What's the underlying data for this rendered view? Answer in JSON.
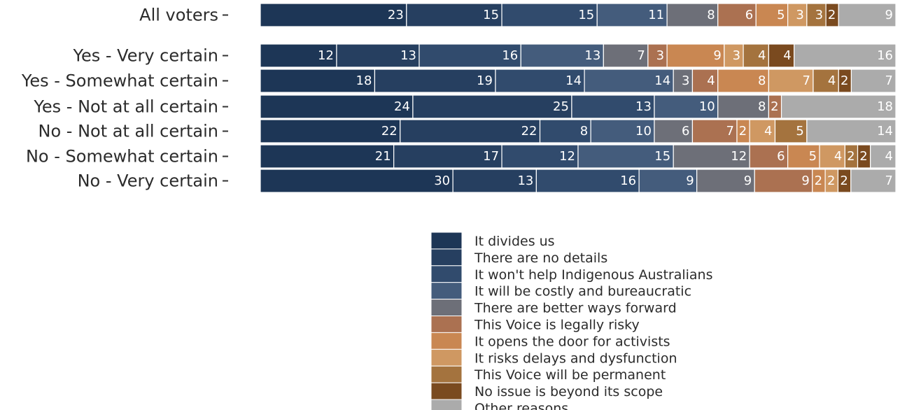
{
  "chart_data": {
    "type": "bar",
    "orientation": "horizontal",
    "stacked": true,
    "title": "",
    "xlabel": "",
    "ylabel": "",
    "categories": [
      "All voters",
      "Yes - Very certain",
      "Yes - Somewhat certain",
      "Yes - Not at all certain",
      "No - Not at all certain",
      "No - Somewhat certain",
      "No - Very certain"
    ],
    "series": [
      {
        "name": "It divides us",
        "color": "#1d3656",
        "values": [
          23,
          12,
          18,
          24,
          22,
          21,
          30
        ]
      },
      {
        "name": "There are no details",
        "color": "#263f60",
        "values": [
          15,
          13,
          19,
          25,
          22,
          17,
          13
        ]
      },
      {
        "name": "It won't help Indigenous Australians",
        "color": "#314b6d",
        "values": [
          15,
          16,
          14,
          13,
          8,
          12,
          16
        ]
      },
      {
        "name": "It will be costly and bureaucratic",
        "color": "#445c7c",
        "values": [
          11,
          13,
          14,
          10,
          10,
          15,
          9
        ]
      },
      {
        "name": "There are better ways forward",
        "color": "#6d6f78",
        "values": [
          8,
          7,
          3,
          8,
          6,
          12,
          9
        ]
      },
      {
        "name": "This Voice is legally risky",
        "color": "#ab7151",
        "values": [
          6,
          3,
          4,
          2,
          7,
          6,
          9
        ]
      },
      {
        "name": "It opens the door for activists",
        "color": "#c98752",
        "values": [
          5,
          9,
          8,
          0,
          2,
          5,
          2
        ]
      },
      {
        "name": "It risks delays and dysfunction",
        "color": "#cf9862",
        "values": [
          3,
          3,
          7,
          0,
          4,
          4,
          2
        ]
      },
      {
        "name": "This Voice will be permanent",
        "color": "#a4733e",
        "values": [
          3,
          4,
          4,
          0,
          5,
          2,
          0
        ]
      },
      {
        "name": "No issue is beyond its scope",
        "color": "#7a4a1f",
        "values": [
          2,
          4,
          2,
          0,
          0,
          2,
          2
        ]
      },
      {
        "name": "Other reasons",
        "color": "#ababab",
        "values": [
          9,
          16,
          7,
          18,
          14,
          4,
          7
        ]
      }
    ],
    "xlim": [
      0,
      100
    ],
    "grid": false,
    "legend_position": "bottom-center"
  }
}
